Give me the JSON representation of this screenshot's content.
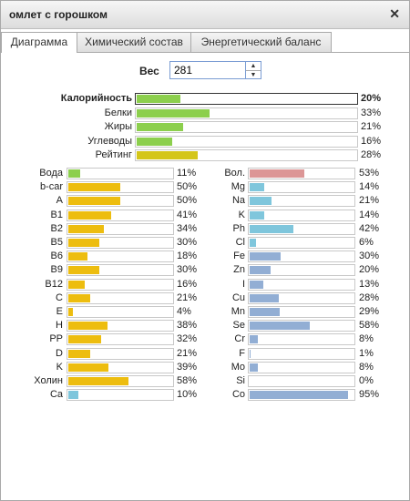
{
  "window": {
    "title": "омлет с горошком",
    "close_glyph": "✕"
  },
  "tabs": [
    {
      "label": "Диаграмма",
      "active": true
    },
    {
      "label": "Химический состав",
      "active": false
    },
    {
      "label": "Энергетический баланс",
      "active": false
    }
  ],
  "weight": {
    "label": "Вес",
    "value": "281",
    "up": "▲",
    "down": "▼"
  },
  "summary": [
    {
      "name": "Калорийность",
      "pct": "20%",
      "value": 20,
      "color": "#8ccf4d",
      "bold": true
    },
    {
      "name": "Белки",
      "pct": "33%",
      "value": 33,
      "color": "#8ccf4d"
    },
    {
      "name": "Жиры",
      "pct": "21%",
      "value": 21,
      "color": "#8ccf4d"
    },
    {
      "name": "Углеводы",
      "pct": "16%",
      "value": 16,
      "color": "#8ccf4d"
    },
    {
      "name": "Рейтинг",
      "pct": "28%",
      "value": 28,
      "color": "#d4c619"
    }
  ],
  "vitamins": [
    {
      "name": "Вода",
      "pct": "11%",
      "value": 11,
      "color": "#8ccf4d"
    },
    {
      "name": "b-car",
      "pct": "50%",
      "value": 50,
      "color": "#edbd0f"
    },
    {
      "name": "A",
      "pct": "50%",
      "value": 50,
      "color": "#edbd0f"
    },
    {
      "name": "B1",
      "pct": "41%",
      "value": 41,
      "color": "#edbd0f"
    },
    {
      "name": "B2",
      "pct": "34%",
      "value": 34,
      "color": "#edbd0f"
    },
    {
      "name": "B5",
      "pct": "30%",
      "value": 30,
      "color": "#edbd0f"
    },
    {
      "name": "B6",
      "pct": "18%",
      "value": 18,
      "color": "#edbd0f"
    },
    {
      "name": "B9",
      "pct": "30%",
      "value": 30,
      "color": "#edbd0f"
    },
    {
      "name": "B12",
      "pct": "16%",
      "value": 16,
      "color": "#edbd0f"
    },
    {
      "name": "C",
      "pct": "21%",
      "value": 21,
      "color": "#edbd0f"
    },
    {
      "name": "E",
      "pct": "4%",
      "value": 4,
      "color": "#edbd0f"
    },
    {
      "name": "H",
      "pct": "38%",
      "value": 38,
      "color": "#edbd0f"
    },
    {
      "name": "PP",
      "pct": "32%",
      "value": 32,
      "color": "#edbd0f"
    },
    {
      "name": "D",
      "pct": "21%",
      "value": 21,
      "color": "#edbd0f"
    },
    {
      "name": "K",
      "pct": "39%",
      "value": 39,
      "color": "#edbd0f"
    },
    {
      "name": "Холин",
      "pct": "58%",
      "value": 58,
      "color": "#edbd0f"
    },
    {
      "name": "Ca",
      "pct": "10%",
      "value": 10,
      "color": "#7fc6dc"
    }
  ],
  "minerals": [
    {
      "name": "Вол.",
      "pct": "53%",
      "value": 53,
      "color": "#dc9696"
    },
    {
      "name": "Mg",
      "pct": "14%",
      "value": 14,
      "color": "#7fc6dc"
    },
    {
      "name": "Na",
      "pct": "21%",
      "value": 21,
      "color": "#7fc6dc"
    },
    {
      "name": "K",
      "pct": "14%",
      "value": 14,
      "color": "#7fc6dc"
    },
    {
      "name": "Ph",
      "pct": "42%",
      "value": 42,
      "color": "#7fc6dc"
    },
    {
      "name": "Cl",
      "pct": "6%",
      "value": 6,
      "color": "#7fc6dc"
    },
    {
      "name": "Fe",
      "pct": "30%",
      "value": 30,
      "color": "#92aed4"
    },
    {
      "name": "Zn",
      "pct": "20%",
      "value": 20,
      "color": "#92aed4"
    },
    {
      "name": "I",
      "pct": "13%",
      "value": 13,
      "color": "#92aed4"
    },
    {
      "name": "Cu",
      "pct": "28%",
      "value": 28,
      "color": "#92aed4"
    },
    {
      "name": "Mn",
      "pct": "29%",
      "value": 29,
      "color": "#92aed4"
    },
    {
      "name": "Se",
      "pct": "58%",
      "value": 58,
      "color": "#92aed4"
    },
    {
      "name": "Cr",
      "pct": "8%",
      "value": 8,
      "color": "#92aed4"
    },
    {
      "name": "F",
      "pct": "1%",
      "value": 1,
      "color": "#92aed4"
    },
    {
      "name": "Mo",
      "pct": "8%",
      "value": 8,
      "color": "#92aed4"
    },
    {
      "name": "Si",
      "pct": "0%",
      "value": 0,
      "color": "#92aed4"
    },
    {
      "name": "Co",
      "pct": "95%",
      "value": 95,
      "color": "#92aed4"
    }
  ]
}
